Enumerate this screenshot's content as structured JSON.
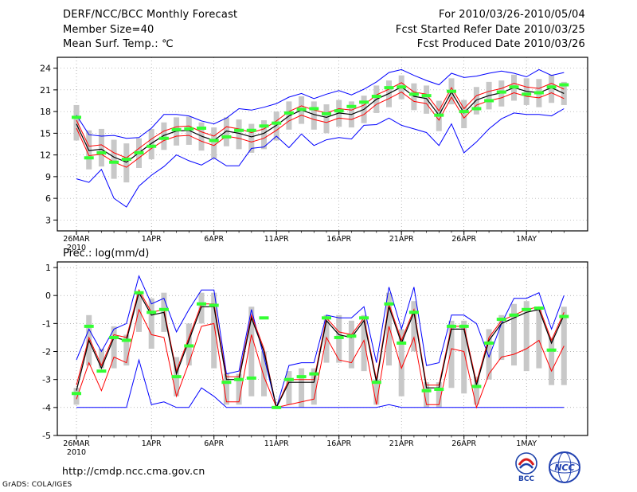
{
  "header": {
    "title": "DERF/NCC/BCC Monthly Forecast",
    "member_size": "Member Size=40",
    "variable": "Mean Surf. Temp.: ℃",
    "period": "For 2010/03/26-2010/05/04",
    "fcst_start": "Fcst Started Refer Date 2010/03/25",
    "fcst_produced": "Fcst Produced Date 2010/03/26"
  },
  "footer": {
    "url": "http://cmdp.ncc.cma.gov.cn",
    "credit": "GrADS: COLA/IGES"
  },
  "logos": {
    "bcc": "BCC",
    "ncc": "NCC"
  },
  "colors": {
    "ensemble_max_min": "#0000ff",
    "spread": "#ff0000",
    "mean": "#000000",
    "box": "#c8c8c8",
    "obs_marker": "#33ff33"
  },
  "chart_data": [
    {
      "type": "line",
      "title": "Mean Surf. Temp.: ℃",
      "ylabel": "℃",
      "ylim": [
        1.5,
        25.5
      ],
      "yticks": [
        3,
        6,
        9,
        12,
        15,
        18,
        21,
        24
      ],
      "xticks": [
        "26MAR\n2010",
        "1APR",
        "6APR",
        "11APR",
        "16APR",
        "21APR",
        "26APR",
        "1MAY"
      ],
      "days": 40,
      "series": [
        {
          "name": "max",
          "values": [
            17.5,
            14.8,
            14.6,
            14.7,
            14.3,
            14.4,
            15.7,
            17.6,
            17.6,
            17.4,
            16.7,
            16.3,
            17.1,
            18.4,
            18.2,
            18.6,
            19.1,
            20.0,
            20.5,
            19.8,
            20.4,
            20.9,
            20.3,
            21.1,
            22.1,
            23.4,
            23.8,
            23.0,
            22.3,
            21.7,
            23.3,
            22.7,
            22.9,
            23.3,
            23.6,
            23.3,
            22.8,
            23.8,
            23.0,
            23.4
          ]
        },
        {
          "name": "mean",
          "values": [
            16.3,
            12.6,
            12.8,
            11.7,
            11.0,
            12.3,
            13.6,
            14.7,
            15.3,
            15.4,
            14.6,
            14.0,
            15.3,
            15.0,
            14.5,
            15.0,
            16.1,
            17.4,
            18.2,
            17.6,
            17.2,
            17.8,
            17.6,
            18.3,
            19.7,
            20.5,
            21.4,
            20.1,
            19.8,
            17.5,
            20.7,
            17.8,
            19.6,
            20.2,
            20.6,
            21.3,
            20.8,
            20.6,
            21.3,
            20.5
          ]
        },
        {
          "name": "upper",
          "values": [
            16.8,
            13.2,
            13.4,
            12.3,
            11.6,
            12.9,
            14.2,
            15.3,
            15.9,
            16.0,
            15.2,
            14.6,
            15.9,
            15.6,
            15.1,
            15.6,
            16.7,
            18.0,
            18.8,
            18.2,
            17.8,
            18.4,
            18.2,
            18.9,
            20.3,
            21.1,
            22.0,
            20.7,
            20.4,
            18.1,
            21.3,
            18.4,
            20.2,
            20.8,
            21.2,
            21.9,
            21.4,
            21.2,
            21.9,
            21.1
          ]
        },
        {
          "name": "lower",
          "values": [
            15.7,
            11.9,
            12.1,
            11.0,
            10.3,
            11.6,
            12.9,
            14.0,
            14.6,
            14.7,
            13.9,
            13.3,
            14.6,
            14.3,
            13.8,
            14.3,
            15.4,
            16.7,
            17.5,
            16.9,
            16.5,
            17.1,
            16.9,
            17.6,
            19.0,
            19.8,
            20.7,
            19.4,
            19.1,
            16.8,
            20.0,
            17.1,
            18.9,
            19.5,
            19.9,
            20.6,
            20.1,
            19.9,
            20.6,
            19.8
          ]
        },
        {
          "name": "min",
          "values": [
            8.7,
            8.2,
            10.0,
            6.0,
            4.8,
            7.7,
            9.2,
            10.4,
            12.0,
            11.2,
            10.6,
            11.6,
            10.5,
            10.5,
            12.9,
            13.1,
            14.6,
            13.0,
            14.9,
            13.3,
            14.1,
            14.4,
            14.2,
            16.1,
            16.2,
            17.1,
            16.1,
            15.6,
            15.1,
            13.3,
            16.3,
            12.3,
            13.8,
            15.6,
            17.0,
            17.8,
            17.6,
            17.6,
            17.4,
            18.4
          ]
        },
        {
          "name": "box_hi",
          "values": [
            18.9,
            15.4,
            15.6,
            14.1,
            13.6,
            14.3,
            15.6,
            16.5,
            17.2,
            17.3,
            16.5,
            15.8,
            17.2,
            16.9,
            16.3,
            16.8,
            18.0,
            19.4,
            20.1,
            19.4,
            19.0,
            19.6,
            19.4,
            20.2,
            21.6,
            22.3,
            23.0,
            21.9,
            21.6,
            19.5,
            22.6,
            19.6,
            21.4,
            22.1,
            22.3,
            23.1,
            22.6,
            22.5,
            23.1,
            22.1
          ]
        },
        {
          "name": "box_lo",
          "values": [
            14.0,
            10.0,
            10.4,
            8.7,
            8.2,
            10.2,
            11.4,
            12.7,
            13.3,
            13.4,
            12.6,
            11.5,
            13.2,
            12.8,
            12.3,
            12.8,
            14.0,
            15.5,
            16.3,
            15.5,
            15.0,
            15.9,
            15.8,
            16.4,
            17.8,
            18.6,
            19.7,
            18.2,
            17.7,
            15.3,
            19.0,
            15.7,
            17.6,
            18.3,
            18.7,
            19.5,
            18.9,
            18.6,
            19.2,
            18.9
          ]
        },
        {
          "name": "obs",
          "values": [
            17.2,
            11.6,
            12.3,
            11.0,
            11.4,
            12.3,
            13.2,
            14.3,
            15.5,
            15.6,
            15.7,
            14.0,
            14.5,
            15.4,
            15.4,
            16.0,
            16.4,
            17.8,
            18.3,
            18.4,
            17.7,
            18.1,
            18.7,
            19.3,
            20.1,
            21.3,
            21.4,
            20.4,
            20.2,
            17.5,
            20.8,
            18.0,
            18.4,
            19.5,
            20.7,
            21.4,
            20.4,
            20.6,
            21.4,
            21.7
          ]
        }
      ]
    },
    {
      "type": "line",
      "title": "Prec.: log(mm/d)",
      "ylabel": "log(mm/d)",
      "ylim": [
        -5,
        1.2
      ],
      "yticks": [
        -5,
        -4,
        -3,
        -2,
        -1,
        0,
        1
      ],
      "xticks": [
        "26MAR\n2010",
        "1APR",
        "6APR",
        "11APR",
        "16APR",
        "21APR",
        "26APR",
        "1MAY"
      ],
      "days": 40,
      "series": [
        {
          "name": "max",
          "values": [
            -2.3,
            -1.2,
            -2.0,
            -1.2,
            -1.0,
            0.7,
            -0.3,
            -0.1,
            -1.3,
            -0.5,
            0.2,
            0.2,
            -2.8,
            -2.7,
            -0.5,
            -2.2,
            -4.0,
            -2.5,
            -2.4,
            -2.4,
            -0.7,
            -0.8,
            -0.8,
            -0.4,
            -2.4,
            0.3,
            -1.2,
            0.3,
            -2.5,
            -2.4,
            -0.7,
            -0.7,
            -1.0,
            -2.2,
            -1.0,
            -0.1,
            -0.1,
            0.1,
            -1.2,
            0.0
          ]
        },
        {
          "name": "mean",
          "values": [
            -3.4,
            -1.6,
            -2.6,
            -1.5,
            -1.6,
            0.1,
            -0.7,
            -0.6,
            -2.8,
            -1.6,
            -0.4,
            -0.4,
            -3.0,
            -3.0,
            -0.8,
            -2.0,
            -4.0,
            -3.1,
            -3.1,
            -3.1,
            -0.9,
            -1.4,
            -1.5,
            -0.9,
            -3.1,
            -0.4,
            -1.7,
            -0.6,
            -3.3,
            -3.3,
            -1.2,
            -1.2,
            -3.2,
            -1.6,
            -1.0,
            -0.8,
            -0.6,
            -0.5,
            -1.7,
            -0.7
          ]
        },
        {
          "name": "upper",
          "values": [
            -3.2,
            -1.5,
            -2.5,
            -1.4,
            -1.5,
            0.2,
            -0.6,
            -0.5,
            -2.7,
            -1.5,
            -0.3,
            -0.3,
            -2.9,
            -2.9,
            -0.7,
            -1.9,
            -4.0,
            -3.0,
            -3.0,
            -3.0,
            -0.8,
            -1.3,
            -1.4,
            -0.8,
            -3.0,
            -0.3,
            -1.6,
            -0.5,
            -3.2,
            -3.2,
            -1.1,
            -1.1,
            -3.1,
            -1.5,
            -0.9,
            -0.7,
            -0.5,
            -0.4,
            -1.6,
            -0.6
          ]
        },
        {
          "name": "lower",
          "values": [
            -3.7,
            -2.4,
            -3.4,
            -2.2,
            -2.4,
            -0.5,
            -1.4,
            -1.5,
            -3.6,
            -2.4,
            -1.1,
            -1.0,
            -3.8,
            -3.8,
            -1.4,
            -2.9,
            -4.0,
            -3.9,
            -3.8,
            -3.7,
            -1.5,
            -2.3,
            -2.4,
            -1.6,
            -3.9,
            -1.1,
            -2.6,
            -1.5,
            -3.9,
            -3.9,
            -1.9,
            -2.0,
            -4.0,
            -2.8,
            -2.2,
            -2.1,
            -1.9,
            -1.6,
            -2.7,
            -1.8
          ]
        },
        {
          "name": "min",
          "values": [
            -4.0,
            -4.0,
            -4.0,
            -4.0,
            -4.0,
            -2.3,
            -3.9,
            -3.8,
            -4.0,
            -4.0,
            -3.3,
            -3.6,
            -4.0,
            -4.0,
            -4.0,
            -4.0,
            -4.0,
            -4.0,
            -4.0,
            -4.0,
            -4.0,
            -4.0,
            -4.0,
            -4.0,
            -4.0,
            -3.9,
            -4.0,
            -4.0,
            -4.0,
            -4.0,
            -4.0,
            -4.0,
            -4.0,
            -4.0,
            -4.0,
            -4.0,
            -4.0,
            -4.0,
            -4.0,
            -4.0
          ]
        },
        {
          "name": "box_hi",
          "values": [
            -3.3,
            -0.7,
            -1.9,
            -1.1,
            -1.4,
            0.1,
            -0.1,
            0.1,
            -2.2,
            -1.0,
            0.1,
            0.1,
            -2.8,
            -2.8,
            -0.4,
            -2.0,
            -4.0,
            -2.7,
            -2.6,
            -2.6,
            -0.7,
            -0.7,
            -0.9,
            -0.7,
            -3.0,
            0.1,
            -1.2,
            -0.2,
            -3.1,
            -3.1,
            -0.9,
            -0.9,
            -2.9,
            -1.2,
            -0.7,
            -0.3,
            -0.2,
            -0.5,
            -1.5,
            -0.4
          ]
        },
        {
          "name": "box_lo",
          "values": [
            -3.9,
            -2.5,
            -2.6,
            -2.6,
            -2.5,
            -1.3,
            -1.9,
            -1.3,
            -3.6,
            -2.5,
            -1.0,
            -2.6,
            -3.9,
            -3.9,
            -3.6,
            -3.6,
            -4.0,
            -3.9,
            -4.0,
            -3.9,
            -2.4,
            -2.4,
            -2.6,
            -2.7,
            -3.9,
            -2.5,
            -3.6,
            -2.0,
            -4.0,
            -4.0,
            -3.3,
            -3.5,
            -3.9,
            -3.0,
            -2.3,
            -2.5,
            -2.7,
            -2.6,
            -3.2,
            -3.2
          ]
        },
        {
          "name": "obs",
          "values": [
            -3.5,
            -1.1,
            -2.7,
            -1.5,
            -1.6,
            0.1,
            -0.6,
            -0.5,
            -2.9,
            -1.8,
            -0.3,
            -0.35,
            -3.1,
            -3.0,
            -2.95,
            -0.8,
            -4.0,
            -3.0,
            -2.9,
            -2.8,
            -0.8,
            -1.5,
            -1.45,
            -0.8,
            -3.1,
            -0.3,
            -1.7,
            -0.6,
            -3.4,
            -3.35,
            -1.1,
            -1.1,
            -3.25,
            -1.7,
            -0.85,
            -0.7,
            -0.5,
            -0.45,
            -1.95,
            -0.75
          ]
        }
      ]
    }
  ]
}
